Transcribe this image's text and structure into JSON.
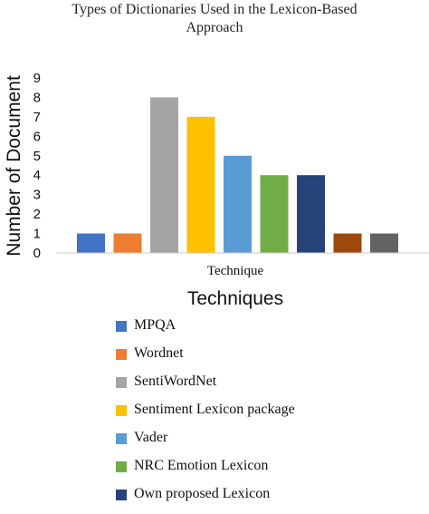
{
  "chart_data": {
    "type": "bar",
    "title": "Types of Dictionaries Used in the Lexicon-Based Approach",
    "title_lines": [
      "Types of Dictionaries Used in the Lexicon-Based",
      "Approach"
    ],
    "xlabel": "Technique",
    "ylabel": "Number of Document",
    "ylim": [
      0,
      9
    ],
    "yticks": [
      "0",
      "1",
      "2",
      "3",
      "4",
      "5",
      "6",
      "7",
      "8",
      "9"
    ],
    "grid": false,
    "legend_title": "Techniques",
    "legend_position": "bottom",
    "series": [
      {
        "name": "MPQA",
        "value": 1,
        "color": "#4472C4"
      },
      {
        "name": "Wordnet",
        "value": 1,
        "color": "#ED7D31"
      },
      {
        "name": "SentiWordNet",
        "value": 8,
        "color": "#A5A5A5"
      },
      {
        "name": "Sentiment Lexicon package",
        "value": 7,
        "color": "#FFC000"
      },
      {
        "name": "Vader",
        "value": 5,
        "color": "#5B9BD5"
      },
      {
        "name": "NRC Emotion Lexicon",
        "value": 4,
        "color": "#70AD47"
      },
      {
        "name": "Own proposed Lexicon",
        "value": 4,
        "color": "#264478"
      },
      {
        "name": "",
        "value": 1,
        "color": "#9E480E"
      },
      {
        "name": "",
        "value": 1,
        "color": "#636363"
      }
    ]
  }
}
